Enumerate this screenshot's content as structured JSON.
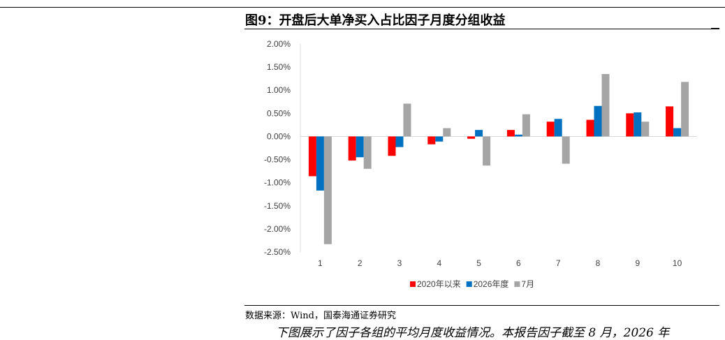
{
  "document": {
    "title": "图9：开盘后大单净买入占比因子月度分组收益",
    "source": "数据来源：Wind，国泰海通证券研究",
    "body_text": "下图展示了因子各组的平均月度收益情况。本报告因子截至 8 月，2026 年"
  },
  "chart_data": {
    "type": "bar",
    "title": "",
    "xlabel": "",
    "ylabel": "",
    "categories": [
      "1",
      "2",
      "3",
      "4",
      "5",
      "6",
      "7",
      "8",
      "9",
      "10"
    ],
    "ylim": [
      -2.5,
      2.0
    ],
    "yticks": [
      "2.00%",
      "1.50%",
      "1.00%",
      "0.50%",
      "0.00%",
      "-0.50%",
      "-1.00%",
      "-1.50%",
      "-2.00%",
      "-2.50%"
    ],
    "ytick_values": [
      2.0,
      1.5,
      1.0,
      0.5,
      0.0,
      -0.5,
      -1.0,
      -1.5,
      -2.0,
      -2.5
    ],
    "unit": "%",
    "grid": false,
    "legend_position": "bottom",
    "series": [
      {
        "name": "2020年以来",
        "color": "#ff0000",
        "values": [
          -0.86,
          -0.52,
          -0.42,
          -0.17,
          -0.05,
          0.14,
          0.32,
          0.36,
          0.5,
          0.65
        ]
      },
      {
        "name": "2026年度",
        "color": "#0070c0",
        "values": [
          -1.17,
          -0.45,
          -0.23,
          -0.11,
          0.14,
          0.04,
          0.38,
          0.66,
          0.52,
          0.18
        ]
      },
      {
        "name": "7月",
        "color": "#a5a5a5",
        "values": [
          -2.33,
          -0.7,
          0.71,
          0.18,
          -0.63,
          0.48,
          -0.59,
          1.35,
          0.32,
          1.18
        ]
      }
    ]
  }
}
